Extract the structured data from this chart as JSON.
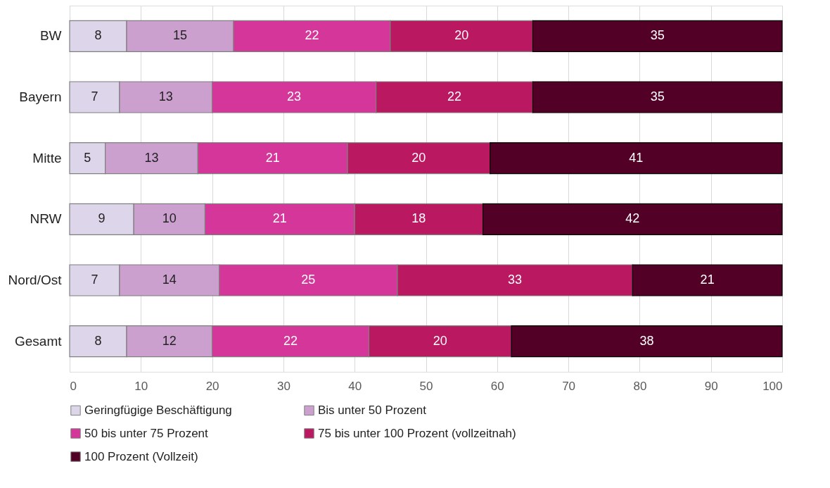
{
  "chart_data": {
    "type": "bar",
    "orientation": "horizontal",
    "stacked": true,
    "data_labels": true,
    "grid": "x",
    "legend": "bottom",
    "categories": [
      "BW",
      "Bayern",
      "Mitte",
      "NRW",
      "Nord/Ost",
      "Gesamt"
    ],
    "xlim": [
      0,
      100
    ],
    "xticks": [
      0,
      10,
      20,
      30,
      40,
      50,
      60,
      70,
      80,
      90,
      100
    ],
    "series": [
      {
        "name": "Geringfügige Beschäftigung",
        "color": "#ddd5ea",
        "values": [
          8,
          7,
          5,
          9,
          7,
          8
        ]
      },
      {
        "name": "Bis unter 50 Prozent",
        "color": "#cba0cf",
        "values": [
          15,
          13,
          13,
          10,
          14,
          12
        ]
      },
      {
        "name": "50 bis unter 75 Prozent",
        "color": "#d5369a",
        "values": [
          22,
          23,
          21,
          21,
          25,
          22
        ]
      },
      {
        "name": "75 bis unter 100 Prozent (vollzeitnah)",
        "color": "#bb1862",
        "values": [
          20,
          22,
          20,
          18,
          33,
          20
        ]
      },
      {
        "name": "100 Prozent (Vollzeit)",
        "color": "#520025",
        "values": [
          35,
          35,
          41,
          42,
          21,
          38
        ]
      }
    ]
  }
}
